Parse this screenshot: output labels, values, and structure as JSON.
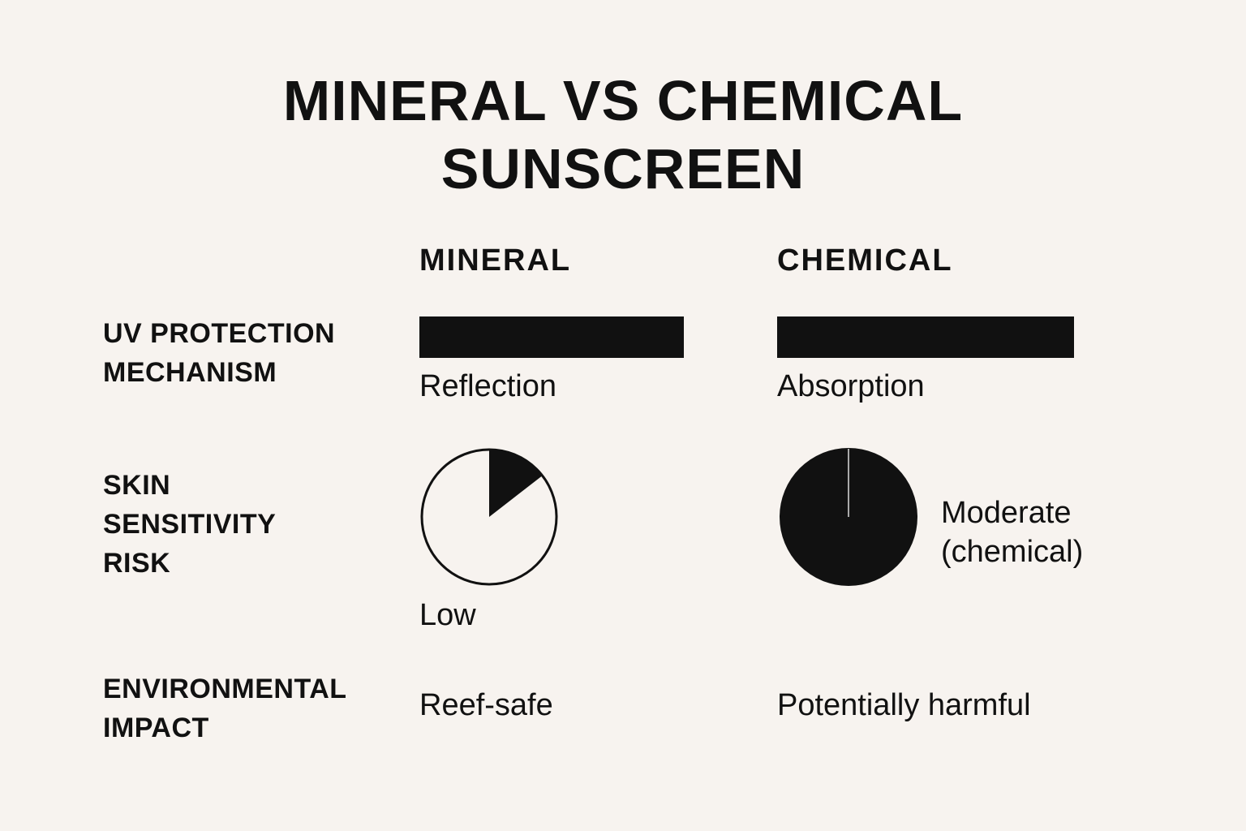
{
  "title_line1": "MINERAL VS CHEMICAL",
  "title_line2": "SUNSCREEN",
  "columns": [
    "MINERAL",
    "CHEMICAL"
  ],
  "rows": [
    {
      "label_lines": [
        "UV PROTECTION",
        "MECHANISM"
      ],
      "mineral": "Reflection",
      "chemical": "Absorption"
    },
    {
      "label_lines": [
        "SKIN",
        "SENSITIVITY",
        "RISK"
      ],
      "mineral": "Low",
      "chemical_lines": [
        "Moderate",
        "(chemical)"
      ],
      "mineral_fraction": 0.145,
      "chemical_fraction": 1.0
    },
    {
      "label_lines": [
        "ENVIRONMENTAL",
        "IMPACT"
      ],
      "mineral": "Reef-safe",
      "chemical": "Potentially harmful"
    }
  ],
  "colors": {
    "background": "#f7f3ef",
    "ink": "#111111"
  }
}
